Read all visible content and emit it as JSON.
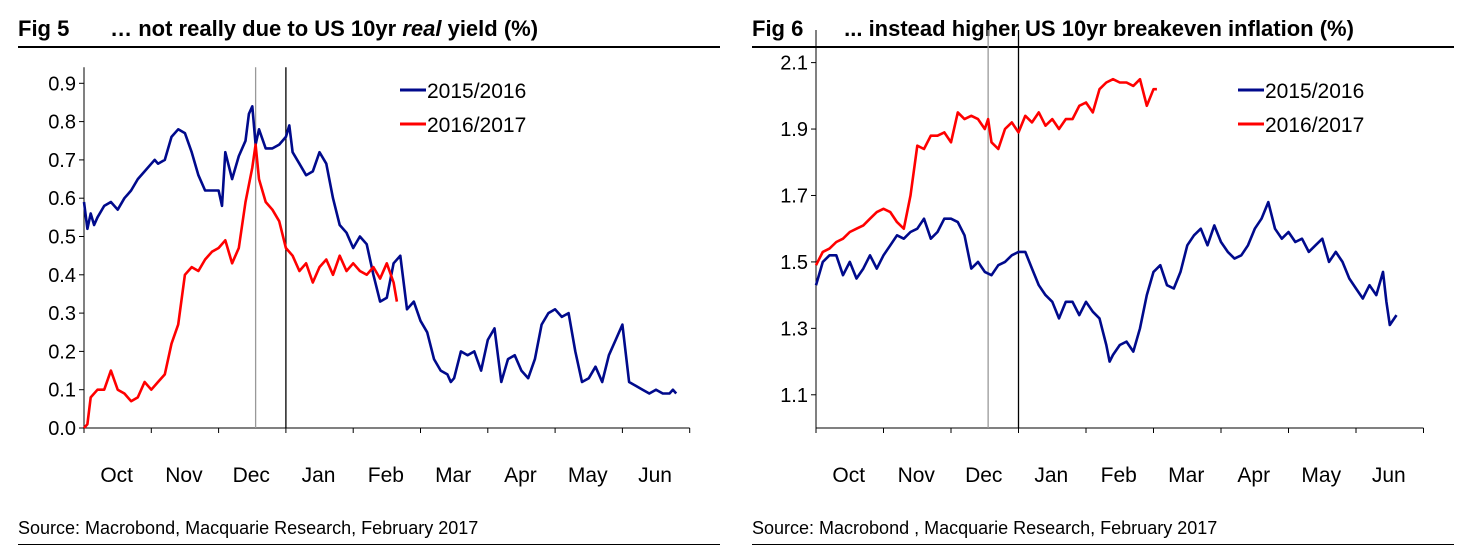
{
  "colors": {
    "series_2015": "#000a8c",
    "series_2016": "#ff0000",
    "axis": "#000000",
    "marker_light": "#999999",
    "marker_dark": "#000000"
  },
  "left": {
    "fig_num": "Fig 5",
    "title_pre": "… not really due to US 10yr ",
    "title_em": "real",
    "title_post": " yield (%)",
    "source": "Source: Macrobond, Macquarie Research, February 2017"
  },
  "right": {
    "fig_num": "Fig 6",
    "title": "... instead higher US 10yr breakeven inflation (%)",
    "source": "Source: Macrobond , Macquarie Research, February 2017"
  },
  "chart_data": [
    {
      "type": "line",
      "title": "… not really due to US 10yr real yield (%)",
      "xlabel": "",
      "ylabel": "",
      "categories": [
        "Oct",
        "Nov",
        "Dec",
        "Jan",
        "Feb",
        "Mar",
        "Apr",
        "May",
        "Jun"
      ],
      "ylim": [
        0,
        0.9
      ],
      "yticks": [
        "0.0",
        "0.1",
        "0.2",
        "0.3",
        "0.4",
        "0.5",
        "0.6",
        "0.7",
        "0.8",
        "0.9"
      ],
      "legend": "top-right",
      "vlines": [
        2.55,
        3.0
      ],
      "series": [
        {
          "name": "2015/2016",
          "x": [
            0,
            0.05,
            0.1,
            0.15,
            0.2,
            0.3,
            0.4,
            0.5,
            0.6,
            0.7,
            0.8,
            0.9,
            1.0,
            1.05,
            1.1,
            1.2,
            1.3,
            1.4,
            1.5,
            1.6,
            1.7,
            1.8,
            1.9,
            2.0,
            2.05,
            2.1,
            2.2,
            2.3,
            2.4,
            2.45,
            2.5,
            2.55,
            2.6,
            2.7,
            2.8,
            2.9,
            3.0,
            3.05,
            3.1,
            3.2,
            3.3,
            3.4,
            3.5,
            3.6,
            3.7,
            3.8,
            3.9,
            4.0,
            4.1,
            4.2,
            4.3,
            4.4,
            4.5,
            4.6,
            4.7,
            4.8,
            4.9,
            5.0,
            5.1,
            5.2,
            5.3,
            5.4,
            5.45,
            5.5,
            5.6,
            5.7,
            5.8,
            5.9,
            6.0,
            6.1,
            6.2,
            6.3,
            6.4,
            6.5,
            6.6,
            6.7,
            6.8,
            6.9,
            7.0,
            7.1,
            7.2,
            7.3,
            7.4,
            7.5,
            7.6,
            7.7,
            7.8,
            7.9,
            8.0,
            8.1,
            8.2,
            8.3,
            8.4,
            8.5,
            8.6,
            8.7,
            8.75,
            8.8
          ],
          "values": [
            0.59,
            0.52,
            0.56,
            0.53,
            0.55,
            0.58,
            0.59,
            0.57,
            0.6,
            0.62,
            0.65,
            0.67,
            0.69,
            0.7,
            0.69,
            0.7,
            0.76,
            0.78,
            0.77,
            0.72,
            0.66,
            0.62,
            0.62,
            0.62,
            0.58,
            0.72,
            0.65,
            0.71,
            0.75,
            0.82,
            0.84,
            0.74,
            0.78,
            0.73,
            0.73,
            0.74,
            0.76,
            0.79,
            0.72,
            0.69,
            0.66,
            0.67,
            0.72,
            0.69,
            0.6,
            0.53,
            0.51,
            0.47,
            0.5,
            0.48,
            0.4,
            0.33,
            0.34,
            0.43,
            0.45,
            0.31,
            0.33,
            0.28,
            0.25,
            0.18,
            0.15,
            0.14,
            0.12,
            0.13,
            0.2,
            0.19,
            0.2,
            0.15,
            0.23,
            0.26,
            0.12,
            0.18,
            0.19,
            0.15,
            0.13,
            0.18,
            0.27,
            0.3,
            0.31,
            0.29,
            0.3,
            0.2,
            0.12,
            0.13,
            0.16,
            0.12,
            0.19,
            0.23,
            0.27,
            0.12,
            0.11,
            0.1,
            0.09,
            0.1,
            0.09,
            0.09,
            0.1,
            0.09
          ]
        },
        {
          "name": "2016/2017",
          "x": [
            0,
            0.05,
            0.1,
            0.2,
            0.3,
            0.4,
            0.5,
            0.6,
            0.7,
            0.8,
            0.9,
            1.0,
            1.1,
            1.2,
            1.3,
            1.4,
            1.5,
            1.6,
            1.7,
            1.8,
            1.9,
            2.0,
            2.1,
            2.2,
            2.3,
            2.4,
            2.5,
            2.55,
            2.6,
            2.7,
            2.8,
            2.9,
            3.0,
            3.1,
            3.2,
            3.3,
            3.4,
            3.5,
            3.6,
            3.7,
            3.8,
            3.9,
            4.0,
            4.1,
            4.2,
            4.3,
            4.4,
            4.5,
            4.6,
            4.65
          ],
          "values": [
            0.0,
            0.01,
            0.08,
            0.1,
            0.1,
            0.15,
            0.1,
            0.09,
            0.07,
            0.08,
            0.12,
            0.1,
            0.12,
            0.14,
            0.22,
            0.27,
            0.4,
            0.42,
            0.41,
            0.44,
            0.46,
            0.47,
            0.49,
            0.43,
            0.47,
            0.59,
            0.68,
            0.74,
            0.65,
            0.59,
            0.57,
            0.54,
            0.47,
            0.45,
            0.41,
            0.43,
            0.38,
            0.42,
            0.44,
            0.4,
            0.45,
            0.41,
            0.43,
            0.41,
            0.4,
            0.42,
            0.39,
            0.43,
            0.38,
            0.33
          ]
        }
      ]
    },
    {
      "type": "line",
      "title": "... instead higher US 10yr breakeven inflation (%)",
      "xlabel": "",
      "ylabel": "",
      "categories": [
        "Oct",
        "Nov",
        "Dec",
        "Jan",
        "Feb",
        "Mar",
        "Apr",
        "May",
        "Jun"
      ],
      "ylim": [
        1.0,
        2.15
      ],
      "yticks": [
        "1.1",
        "1.3",
        "1.5",
        "1.7",
        "1.9",
        "2.1"
      ],
      "legend": "top-right",
      "vlines": [
        2.55,
        3.0
      ],
      "series": [
        {
          "name": "2015/2016",
          "x": [
            0,
            0.1,
            0.2,
            0.3,
            0.4,
            0.5,
            0.6,
            0.7,
            0.8,
            0.9,
            1.0,
            1.1,
            1.2,
            1.3,
            1.4,
            1.5,
            1.6,
            1.7,
            1.8,
            1.9,
            2.0,
            2.1,
            2.2,
            2.3,
            2.4,
            2.5,
            2.6,
            2.7,
            2.8,
            2.9,
            3.0,
            3.1,
            3.2,
            3.3,
            3.4,
            3.5,
            3.6,
            3.7,
            3.8,
            3.9,
            4.0,
            4.1,
            4.2,
            4.3,
            4.35,
            4.4,
            4.5,
            4.6,
            4.7,
            4.8,
            4.9,
            5.0,
            5.1,
            5.2,
            5.3,
            5.4,
            5.5,
            5.6,
            5.7,
            5.8,
            5.9,
            6.0,
            6.1,
            6.2,
            6.3,
            6.4,
            6.5,
            6.6,
            6.7,
            6.8,
            6.9,
            7.0,
            7.1,
            7.2,
            7.3,
            7.4,
            7.5,
            7.6,
            7.7,
            7.8,
            7.9,
            8.0,
            8.1,
            8.2,
            8.3,
            8.4,
            8.45,
            8.5,
            8.6
          ],
          "values": [
            1.43,
            1.5,
            1.52,
            1.52,
            1.46,
            1.5,
            1.45,
            1.48,
            1.52,
            1.48,
            1.52,
            1.55,
            1.58,
            1.57,
            1.59,
            1.6,
            1.63,
            1.57,
            1.59,
            1.63,
            1.63,
            1.62,
            1.58,
            1.48,
            1.5,
            1.47,
            1.46,
            1.49,
            1.5,
            1.52,
            1.53,
            1.53,
            1.48,
            1.43,
            1.4,
            1.38,
            1.33,
            1.38,
            1.38,
            1.34,
            1.38,
            1.35,
            1.33,
            1.25,
            1.2,
            1.22,
            1.25,
            1.26,
            1.23,
            1.3,
            1.4,
            1.47,
            1.49,
            1.43,
            1.42,
            1.47,
            1.55,
            1.58,
            1.6,
            1.55,
            1.61,
            1.56,
            1.53,
            1.51,
            1.52,
            1.55,
            1.6,
            1.63,
            1.68,
            1.6,
            1.57,
            1.59,
            1.56,
            1.57,
            1.53,
            1.55,
            1.57,
            1.5,
            1.53,
            1.5,
            1.45,
            1.42,
            1.39,
            1.43,
            1.4,
            1.47,
            1.38,
            1.31,
            1.34
          ]
        },
        {
          "name": "2016/2017",
          "x": [
            0,
            0.1,
            0.2,
            0.3,
            0.4,
            0.5,
            0.6,
            0.7,
            0.8,
            0.9,
            1.0,
            1.1,
            1.2,
            1.3,
            1.4,
            1.5,
            1.6,
            1.7,
            1.8,
            1.9,
            2.0,
            2.1,
            2.2,
            2.3,
            2.4,
            2.5,
            2.55,
            2.6,
            2.7,
            2.8,
            2.9,
            3.0,
            3.1,
            3.2,
            3.3,
            3.4,
            3.5,
            3.6,
            3.7,
            3.8,
            3.9,
            4.0,
            4.1,
            4.2,
            4.3,
            4.4,
            4.5,
            4.6,
            4.7,
            4.8,
            4.9,
            5.0,
            5.05
          ],
          "values": [
            1.49,
            1.53,
            1.54,
            1.56,
            1.57,
            1.59,
            1.6,
            1.61,
            1.63,
            1.65,
            1.66,
            1.65,
            1.62,
            1.6,
            1.7,
            1.85,
            1.84,
            1.88,
            1.88,
            1.89,
            1.86,
            1.95,
            1.93,
            1.94,
            1.93,
            1.9,
            1.93,
            1.86,
            1.84,
            1.9,
            1.92,
            1.89,
            1.94,
            1.92,
            1.95,
            1.91,
            1.93,
            1.9,
            1.93,
            1.93,
            1.97,
            1.98,
            1.95,
            2.02,
            2.04,
            2.05,
            2.04,
            2.04,
            2.03,
            2.05,
            1.97,
            2.02,
            2.02
          ]
        }
      ]
    }
  ]
}
